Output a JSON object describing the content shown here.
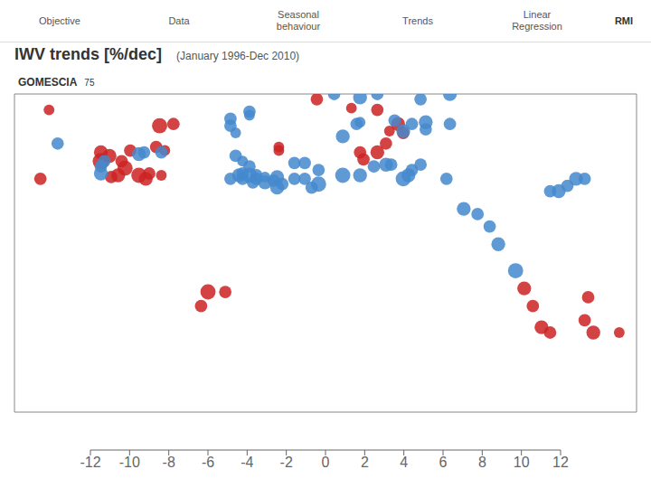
{
  "chart_data": {
    "type": "scatter",
    "title": "IWV trends [%/dec]",
    "subtitle": "(January 1996-Dec 2010)",
    "tabs": [
      "Objective",
      "Data",
      "Seasonal\nbehaviour",
      "Trends",
      "Linear\nRegression"
    ],
    "logo": "RMI",
    "annotations": [
      "GOMESCIA",
      "75"
    ],
    "xlim": [
      -180,
      180
    ],
    "ylim": [
      -90,
      90
    ],
    "tick_labels": false,
    "grid": false,
    "series": [
      {
        "color": "#cc2222",
        "x": [
          -130,
          -130,
          -125,
          -118,
          -116,
          -120,
          -124,
          -108,
          -104,
          -102,
          -95,
          -113,
          -98,
          -93,
          -165,
          -96,
          -88,
          -27,
          -27,
          20,
          30,
          22,
          35,
          45,
          37,
          42,
          30,
          15,
          -160,
          -5,
          115,
          120,
          125,
          130,
          150,
          155,
          152,
          170,
          -68,
          -58,
          -72
        ],
        "y": [
          52,
          57,
          55,
          52,
          48,
          44,
          43,
          44,
          42,
          45,
          44,
          58,
          60,
          58,
          42,
          72,
          73,
          60,
          58,
          57,
          57,
          53,
          62,
          68,
          69,
          73,
          81,
          82,
          81,
          87,
          -20,
          -30,
          -42,
          -45,
          -38,
          -45,
          -25,
          -45,
          -22,
          -22,
          -30
        ],
        "sizes": [
          14,
          10,
          10,
          8,
          12,
          10,
          8,
          12,
          10,
          8,
          6,
          8,
          8,
          6,
          8,
          12,
          8,
          6,
          6,
          8,
          10,
          8,
          8,
          8,
          6,
          10,
          8,
          6,
          6,
          8,
          10,
          8,
          10,
          8,
          8,
          10,
          8,
          6,
          12,
          8,
          8
        ]
      },
      {
        "color": "#4488cc",
        "x": [
          -130,
          -130,
          -128,
          -108,
          -105,
          -95,
          -55,
          -50,
          -48,
          -48,
          -44,
          -42,
          -40,
          -40,
          -35,
          -35,
          -30,
          -28,
          -25,
          -28,
          -18,
          -12,
          -8,
          -4,
          -44,
          -18,
          -12,
          -52,
          -48,
          -4,
          10,
          20,
          28,
          35,
          38,
          45,
          48,
          50,
          55,
          70,
          10,
          -55,
          -55,
          -52,
          -44,
          -44,
          18,
          20,
          40,
          45,
          50,
          58,
          58,
          72,
          5,
          20,
          30,
          55,
          72,
          -155,
          80,
          88,
          95,
          100,
          110,
          130,
          135,
          140,
          145,
          150
        ],
        "y": [
          45,
          49,
          52,
          56,
          57,
          57,
          42,
          44,
          45,
          42,
          44,
          40,
          42,
          44,
          40,
          43,
          41,
          43,
          39,
          37,
          42,
          42,
          37,
          39,
          49,
          51,
          51,
          55,
          52,
          47,
          44,
          44,
          49,
          50,
          50,
          42,
          44,
          47,
          50,
          42,
          66,
          72,
          76,
          68,
          80,
          78,
          73,
          74,
          75,
          69,
          73,
          74,
          70,
          73,
          90,
          88,
          90,
          87,
          90,
          62,
          25,
          22,
          15,
          5,
          -10,
          35,
          35,
          38,
          42,
          42
        ],
        "sizes": [
          10,
          8,
          8,
          10,
          8,
          8,
          8,
          10,
          8,
          8,
          12,
          8,
          8,
          8,
          10,
          6,
          8,
          10,
          8,
          10,
          8,
          8,
          8,
          12,
          8,
          8,
          8,
          8,
          6,
          8,
          12,
          10,
          8,
          10,
          8,
          12,
          10,
          8,
          8,
          8,
          10,
          8,
          8,
          6,
          8,
          6,
          8,
          6,
          8,
          10,
          8,
          10,
          8,
          8,
          8,
          10,
          8,
          8,
          10,
          8,
          10,
          8,
          8,
          10,
          12,
          8,
          10,
          8,
          10,
          8
        ]
      }
    ],
    "colorbar": {
      "range": [
        -12,
        12
      ],
      "ticks": [
        -12,
        -10,
        -8,
        -6,
        -4,
        -2,
        0,
        2,
        4,
        6,
        8,
        10,
        12
      ],
      "colors": [
        "#8b0000",
        "#b22222",
        "#cd5c5c",
        "#f08080",
        "#ffb0b0",
        "#ffe0e0",
        "#d0e8ff",
        "#a8ccee",
        "#7fb3d3",
        "#4d94c8",
        "#1a6fa8",
        "#003366"
      ]
    }
  }
}
